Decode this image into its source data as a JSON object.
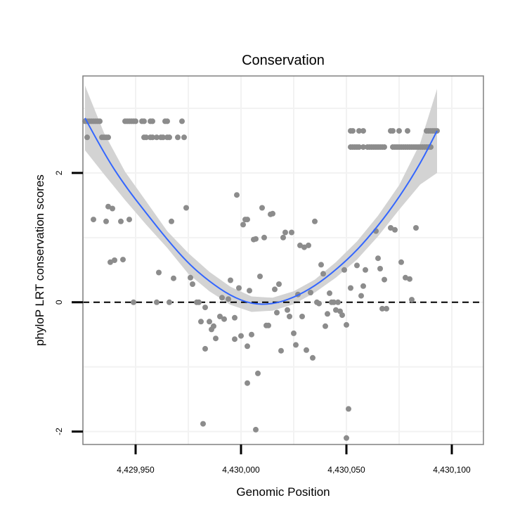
{
  "chart_data": {
    "type": "scatter",
    "title": "Conservation",
    "xlabel": "Genomic Position",
    "ylabel": "phyloP LRT conservation scores",
    "xlim": [
      4429925,
      4430115
    ],
    "ylim": [
      -2.2,
      3.5
    ],
    "x_ticks": [
      4429950,
      4430000,
      4430050,
      4430100
    ],
    "x_tick_labels": [
      "4,429,950",
      "4,430,000",
      "4,430,050",
      "4,430,100"
    ],
    "y_ticks": [
      -2,
      0,
      2
    ],
    "y_tick_labels": [
      "-2",
      "0",
      "2"
    ],
    "grid": true,
    "reference_line": {
      "y": 0,
      "style": "dashed"
    },
    "colors": {
      "points": "#8c8c8c",
      "smooth_line": "#3366ff",
      "ribbon": "#d3d3d3",
      "panel_border": "#808080",
      "grid": "#f2f2f2"
    },
    "points": [
      [
        4429926,
        2.8
      ],
      [
        4429927,
        2.8
      ],
      [
        4429928,
        2.8
      ],
      [
        4429929,
        2.8
      ],
      [
        4429930,
        2.8
      ],
      [
        4429931,
        2.8
      ],
      [
        4429932,
        2.8
      ],
      [
        4429933,
        2.8
      ],
      [
        4429927,
        2.55
      ],
      [
        4429934,
        2.55
      ],
      [
        4429935,
        2.55
      ],
      [
        4429936,
        2.55
      ],
      [
        4429937,
        2.55
      ],
      [
        4429930,
        1.28
      ],
      [
        4429936,
        1.25
      ],
      [
        4429937,
        1.48
      ],
      [
        4429939,
        1.45
      ],
      [
        4429938,
        0.62
      ],
      [
        4429940,
        0.65
      ],
      [
        4429945,
        2.8
      ],
      [
        4429946,
        2.8
      ],
      [
        4429947,
        2.8
      ],
      [
        4429948,
        2.8
      ],
      [
        4429949,
        2.8
      ],
      [
        4429950,
        2.8
      ],
      [
        4429953,
        2.8
      ],
      [
        4429954,
        2.8
      ],
      [
        4429957,
        2.8
      ],
      [
        4429958,
        2.8
      ],
      [
        4429964,
        2.8
      ],
      [
        4429965,
        2.8
      ],
      [
        4429972,
        2.8
      ],
      [
        4429954,
        2.55
      ],
      [
        4429955,
        2.55
      ],
      [
        4429957,
        2.55
      ],
      [
        4429958,
        2.55
      ],
      [
        4429960,
        2.55
      ],
      [
        4429962,
        2.55
      ],
      [
        4429963,
        2.55
      ],
      [
        4429965,
        2.55
      ],
      [
        4429966,
        2.55
      ],
      [
        4429970,
        2.55
      ],
      [
        4429973,
        2.55
      ],
      [
        4429943,
        1.25
      ],
      [
        4429947,
        1.28
      ],
      [
        4429944,
        0.66
      ],
      [
        4429949,
        0.0
      ],
      [
        4429961,
        0.46
      ],
      [
        4429967,
        1.25
      ],
      [
        4429968,
        0.37
      ],
      [
        4429960,
        0.0
      ],
      [
        4429966,
        0.0
      ],
      [
        4429974,
        1.46
      ],
      [
        4429976,
        0.38
      ],
      [
        4429977,
        0.28
      ],
      [
        4429979,
        0.0
      ],
      [
        4429980,
        0.0
      ],
      [
        4429981,
        -0.3
      ],
      [
        4429983,
        -0.08
      ],
      [
        4429983,
        -0.72
      ],
      [
        4429985,
        -0.3
      ],
      [
        4429986,
        -0.42
      ],
      [
        4429987,
        -0.37
      ],
      [
        4429988,
        -0.56
      ],
      [
        4429990,
        -0.22
      ],
      [
        4429992,
        -0.26
      ],
      [
        4429991,
        0.07
      ],
      [
        4429994,
        0.05
      ],
      [
        4429995,
        0.34
      ],
      [
        4429997,
        -0.57
      ],
      [
        4429997,
        -0.24
      ],
      [
        4429998,
        1.66
      ],
      [
        4429999,
        0.22
      ],
      [
        4430000,
        -0.52
      ],
      [
        4430001,
        1.2
      ],
      [
        4430002,
        1.28
      ],
      [
        4430003,
        1.28
      ],
      [
        4429982,
        -1.88
      ],
      [
        4430003,
        -0.68
      ],
      [
        4430004,
        0.18
      ],
      [
        4430005,
        -0.5
      ],
      [
        4430006,
        0.97
      ],
      [
        4430007,
        0.98
      ],
      [
        4430008,
        -1.1
      ],
      [
        4430009,
        0.4
      ],
      [
        4430010,
        1.46
      ],
      [
        4430011,
        1.0
      ],
      [
        4430012,
        -0.36
      ],
      [
        4430013,
        -0.36
      ],
      [
        4430003,
        -1.25
      ],
      [
        4430007,
        -1.97
      ],
      [
        4430014,
        1.36
      ],
      [
        4430015,
        1.37
      ],
      [
        4430016,
        0.2
      ],
      [
        4430017,
        -0.16
      ],
      [
        4430018,
        0.28
      ],
      [
        4430019,
        -0.75
      ],
      [
        4430020,
        1.0
      ],
      [
        4430021,
        1.08
      ],
      [
        4430022,
        -0.12
      ],
      [
        4430023,
        -0.22
      ],
      [
        4430024,
        1.08
      ],
      [
        4430025,
        -0.48
      ],
      [
        4430026,
        -0.66
      ],
      [
        4430027,
        0.12
      ],
      [
        4430028,
        0.88
      ],
      [
        4430029,
        -0.22
      ],
      [
        4430030,
        0.85
      ],
      [
        4430031,
        -0.74
      ],
      [
        4430032,
        0.88
      ],
      [
        4430033,
        0.15
      ],
      [
        4430034,
        -0.86
      ],
      [
        4430035,
        1.25
      ],
      [
        4430036,
        0.0
      ],
      [
        4430037,
        -0.02
      ],
      [
        4430038,
        0.58
      ],
      [
        4430039,
        0.44
      ],
      [
        4430040,
        -0.37
      ],
      [
        4430041,
        -0.18
      ],
      [
        4430042,
        0.14
      ],
      [
        4430043,
        0.0
      ],
      [
        4430044,
        0.0
      ],
      [
        4430045,
        -0.12
      ],
      [
        4430046,
        0.0
      ],
      [
        4430047,
        -0.14
      ],
      [
        4430048,
        -0.2
      ],
      [
        4430049,
        0.5
      ],
      [
        4430050,
        -0.35
      ],
      [
        4430051,
        -1.65
      ],
      [
        4430050,
        -2.1
      ],
      [
        4430052,
        2.65
      ],
      [
        4430053,
        2.65
      ],
      [
        4430056,
        2.65
      ],
      [
        4430058,
        2.65
      ],
      [
        4430071,
        2.65
      ],
      [
        4430072,
        2.65
      ],
      [
        4430075,
        2.65
      ],
      [
        4430079,
        2.65
      ],
      [
        4430088,
        2.65
      ],
      [
        4430089,
        2.65
      ],
      [
        4430090,
        2.65
      ],
      [
        4430091,
        2.65
      ],
      [
        4430092,
        2.65
      ],
      [
        4430093,
        2.65
      ],
      [
        4430052,
        2.4
      ],
      [
        4430053,
        2.4
      ],
      [
        4430054,
        2.4
      ],
      [
        4430055,
        2.4
      ],
      [
        4430056,
        2.4
      ],
      [
        4430058,
        2.4
      ],
      [
        4430060,
        2.4
      ],
      [
        4430061,
        2.4
      ],
      [
        4430062,
        2.4
      ],
      [
        4430063,
        2.4
      ],
      [
        4430064,
        2.4
      ],
      [
        4430065,
        2.4
      ],
      [
        4430066,
        2.4
      ],
      [
        4430067,
        2.4
      ],
      [
        4430068,
        2.4
      ],
      [
        4430072,
        2.4
      ],
      [
        4430073,
        2.4
      ],
      [
        4430074,
        2.4
      ],
      [
        4430075,
        2.4
      ],
      [
        4430076,
        2.4
      ],
      [
        4430077,
        2.4
      ],
      [
        4430078,
        2.4
      ],
      [
        4430079,
        2.4
      ],
      [
        4430080,
        2.4
      ],
      [
        4430081,
        2.4
      ],
      [
        4430082,
        2.4
      ],
      [
        4430083,
        2.4
      ],
      [
        4430084,
        2.4
      ],
      [
        4430085,
        2.4
      ],
      [
        4430086,
        2.4
      ],
      [
        4430087,
        2.4
      ],
      [
        4430088,
        2.4
      ],
      [
        4430089,
        2.4
      ],
      [
        4430090,
        2.4
      ],
      [
        4430052,
        0.22
      ],
      [
        4430055,
        0.57
      ],
      [
        4430057,
        0.1
      ],
      [
        4430058,
        0.25
      ],
      [
        4430059,
        0.5
      ],
      [
        4430064,
        1.1
      ],
      [
        4430065,
        0.68
      ],
      [
        4430066,
        0.52
      ],
      [
        4430067,
        -0.1
      ],
      [
        4430068,
        0.35
      ],
      [
        4430069,
        -0.1
      ],
      [
        4430071,
        1.15
      ],
      [
        4430073,
        1.12
      ],
      [
        4430076,
        0.62
      ],
      [
        4430078,
        0.38
      ],
      [
        4430080,
        0.36
      ],
      [
        4430081,
        0.04
      ],
      [
        4430083,
        1.15
      ]
    ],
    "smooth": {
      "x": [
        4429926,
        4429935,
        4429945,
        4429955,
        4429965,
        4429975,
        4429985,
        4429995,
        4430005,
        4430015,
        4430025,
        4430035,
        4430045,
        4430055,
        4430065,
        4430075,
        4430085,
        4430093
      ],
      "y": [
        2.85,
        2.3,
        1.8,
        1.38,
        0.97,
        0.6,
        0.32,
        0.1,
        -0.03,
        -0.03,
        0.07,
        0.25,
        0.5,
        0.8,
        1.18,
        1.62,
        2.14,
        2.65
      ],
      "lower": [
        2.35,
        1.98,
        1.58,
        1.2,
        0.84,
        0.44,
        0.17,
        -0.04,
        -0.15,
        -0.13,
        -0.03,
        0.15,
        0.38,
        0.66,
        1.02,
        1.43,
        1.82,
        2.0
      ],
      "upper": [
        3.35,
        2.62,
        2.02,
        1.56,
        1.1,
        0.76,
        0.47,
        0.24,
        0.09,
        0.07,
        0.17,
        0.35,
        0.62,
        0.94,
        1.34,
        1.81,
        2.46,
        3.3
      ]
    }
  }
}
